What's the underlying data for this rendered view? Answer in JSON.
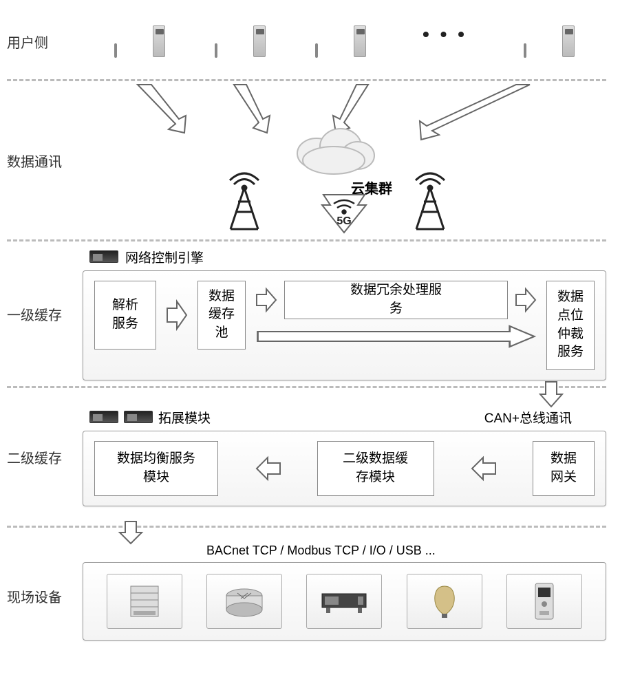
{
  "layers": {
    "user": "用户侧",
    "comm": "数据通讯",
    "l1": "一级缓存",
    "l2": "二级缓存",
    "field": "现场设备"
  },
  "cloud_label": "云集群",
  "fiveg_label": "5G",
  "ellipsis": "• • •",
  "engine": {
    "title": "网络控制引擎",
    "boxes": {
      "parse": "解析\n服务",
      "pool": "数据\n缓存\n池",
      "redund": "数据冗余处理服\n务",
      "arbit": "数据\n点位\n仲裁\n服务"
    }
  },
  "expansion": {
    "title": "拓展模块",
    "bus": "CAN+总线通讯",
    "boxes": {
      "balance": "数据均衡服务\n模块",
      "cache2": "二级数据缓\n存模块",
      "gateway": "数据\n网关"
    }
  },
  "protocols": "BACnet TCP / Modbus TCP / I/O / USB ...",
  "colors": {
    "text": "#333333",
    "dash": "#bbbbbb",
    "box_border": "#888888",
    "arrow_stroke": "#666666",
    "box_bg_top": "#ffffff",
    "box_bg_bot": "#f4f4f4"
  },
  "styling": {
    "label_fontsize": 20,
    "box_fontsize": 19,
    "divider_dash": "3px dashed"
  },
  "computers_count": 4,
  "equipment_count": 5
}
